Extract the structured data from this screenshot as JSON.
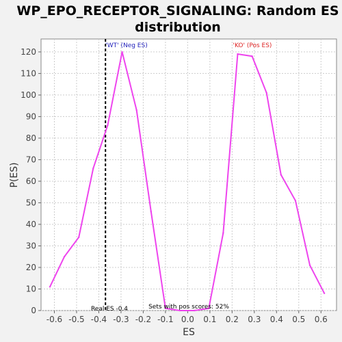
{
  "chart_data": {
    "type": "line",
    "title_line1": "WP_EPO_RECEPTOR_SIGNALING: Random ES",
    "title_line2": "distribution",
    "xlabel": "ES",
    "ylabel": "P(ES)",
    "xlim": [
      -0.66,
      0.67
    ],
    "ylim": [
      0,
      126
    ],
    "xticks": [
      -0.6,
      -0.5,
      -0.4,
      -0.3,
      -0.2,
      -0.1,
      0.0,
      0.1,
      0.2,
      0.3,
      0.4,
      0.5,
      0.6
    ],
    "yticks": [
      0,
      10,
      20,
      30,
      40,
      50,
      60,
      70,
      80,
      90,
      100,
      110,
      120
    ],
    "grid": true,
    "series": [
      {
        "color": "#ee44ee",
        "x": [
          -0.62,
          -0.555,
          -0.49,
          -0.425,
          -0.36,
          -0.295,
          -0.23,
          -0.165,
          -0.1,
          -0.035,
          0.03,
          0.095,
          0.16,
          0.225,
          0.29,
          0.355,
          0.42,
          0.485,
          0.55,
          0.615
        ],
        "y": [
          11,
          25,
          34,
          66,
          86,
          120,
          93,
          46,
          1,
          0,
          0,
          1,
          36,
          119,
          118,
          101,
          63,
          51,
          21,
          8
        ]
      }
    ],
    "real_es": -0.37,
    "annotations": {
      "wt_label": "'WT' (Neg ES)",
      "ko_label": "'KO' (Pos ES)",
      "real_es_label": "Real ES -0.4",
      "pos_scores_label": "Sets with pos scores: 52%"
    },
    "colors": {
      "wt": "#2222bb",
      "ko": "#dd2222",
      "line": "#ee44ee",
      "grid": "#cccccc"
    }
  }
}
